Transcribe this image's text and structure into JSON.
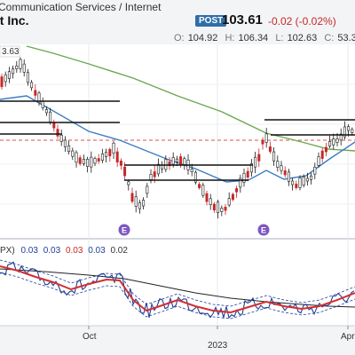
{
  "header": {
    "sector": "Communication Services / Internet",
    "company": "et Inc.",
    "badge": "POST",
    "last_price": "103.61",
    "change": "-0.02 (-0.02%)",
    "open_label": "O:",
    "open": "104.92",
    "high_label": "H:",
    "high": "106.34",
    "low_label": "L:",
    "low": "102.63",
    "close_label": "C:",
    "close": "53.3"
  },
  "price_panel": {
    "peak_label": "3.63",
    "earnings_badge": "E"
  },
  "indicator_panel": {
    "label": "PX)",
    "values": [
      "0.03",
      "0.03",
      "0.03",
      "0.03",
      "0.02"
    ],
    "value_colors": [
      "#1f3f99",
      "#1f3f99",
      "#c62828",
      "#1f3f99",
      "#333333"
    ]
  },
  "x_axis": {
    "ticks": [
      "Oct",
      "2023",
      "Apr"
    ]
  },
  "colors": {
    "candle_up": "#1a1a1a",
    "candle_down": "#c62828",
    "ma_fast": "#3b7dc4",
    "ma_slow": "#6aa84f",
    "reference_line": "#d9534f",
    "earnings": "#7e57c2"
  },
  "chart_data": {
    "type": "candlestick",
    "title": "",
    "xlabel": "",
    "ylabel": "",
    "x_tick_labels": [
      "Oct",
      "2023",
      "Apr"
    ],
    "series_price": {
      "last": 103.61,
      "open": 104.92,
      "high": 106.34,
      "low": 102.63
    },
    "indicator": {
      "name": "PX)",
      "values": [
        0.03,
        0.03,
        0.03,
        0.03,
        0.02
      ]
    }
  }
}
